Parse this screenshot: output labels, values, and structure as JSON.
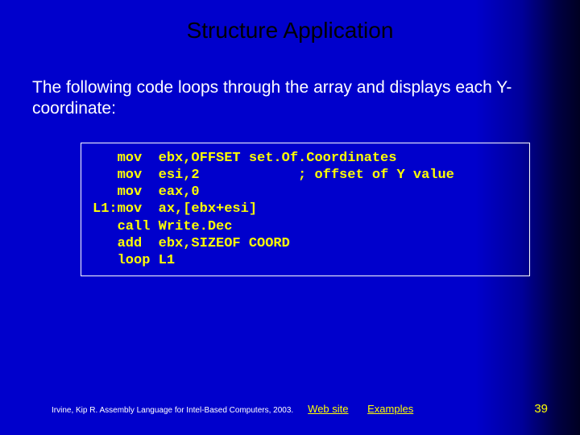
{
  "slide": {
    "title": "Structure Application",
    "description": "The following code loops through the array and displays each Y-coordinate:",
    "code": "   mov  ebx,OFFSET set.Of.Coordinates\n   mov  esi,2            ; offset of Y value\n   mov  eax,0\nL1:mov  ax,[ebx+esi]\n   call Write.Dec\n   add  ebx,SIZEOF COORD\n   loop L1"
  },
  "footer": {
    "citation": "Irvine, Kip R. Assembly Language for Intel-Based Computers, 2003.",
    "link1": "Web site",
    "link2": "Examples",
    "page": "39"
  },
  "colors": {
    "bg_main": "#0000cc",
    "bg_edge": "#000022",
    "title_color": "#000000",
    "text_color": "#ffffff",
    "code_color": "#ffff00",
    "link_color": "#ffff00",
    "border_color": "#ffffff"
  }
}
